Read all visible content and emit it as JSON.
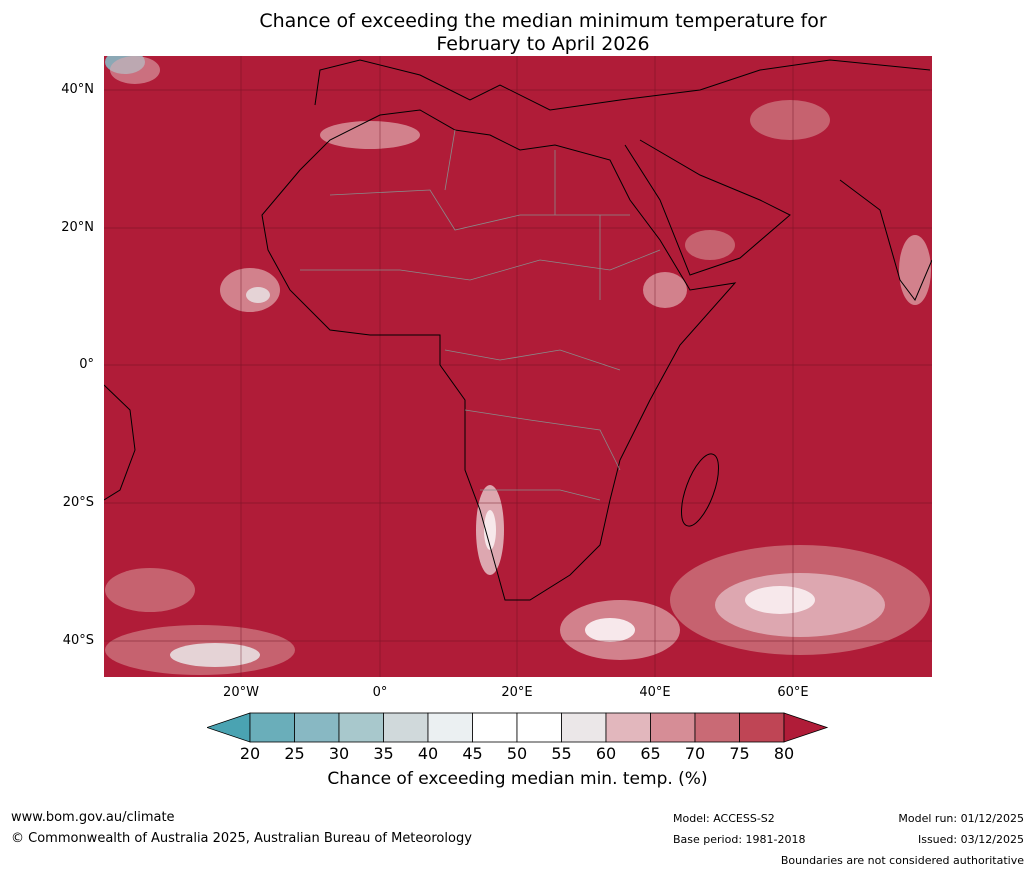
{
  "title": {
    "line1": "Chance of exceeding the median minimum temperature for",
    "line2": "February to April 2026"
  },
  "lat_labels": [
    "40°N",
    "20°N",
    "0°",
    "20°S",
    "40°S"
  ],
  "lon_labels": [
    "20°W",
    "0°",
    "20°E",
    "40°E",
    "60°E"
  ],
  "colorbar": {
    "ticks": [
      "20",
      "25",
      "30",
      "35",
      "40",
      "45",
      "50",
      "55",
      "60",
      "65",
      "70",
      "75",
      "80"
    ],
    "colors": [
      "#4aa3b2",
      "#6aaeba",
      "#88b8c3",
      "#a8c8cc",
      "#d0d9db",
      "#ebf0f2",
      "#ffffff",
      "#ffffff",
      "#ebe7e8",
      "#e2b7bd",
      "#d68d96",
      "#c96a75",
      "#bf4555",
      "#b01c38"
    ],
    "label": "Chance of exceeding median min. temp. (%)"
  },
  "map": {
    "dominant_color": "#b01c38"
  },
  "footer": {
    "url": "www.bom.gov.au/climate",
    "copyright": "© Commonwealth of Australia 2025, Australian Bureau of Meteorology",
    "model": "Model: ACCESS-S2",
    "base_period": "Base period: 1981-2018",
    "model_run": "Model run: 01/12/2025",
    "issued": "Issued: 03/12/2025",
    "disclaimer": "Boundaries are not considered authoritative"
  }
}
